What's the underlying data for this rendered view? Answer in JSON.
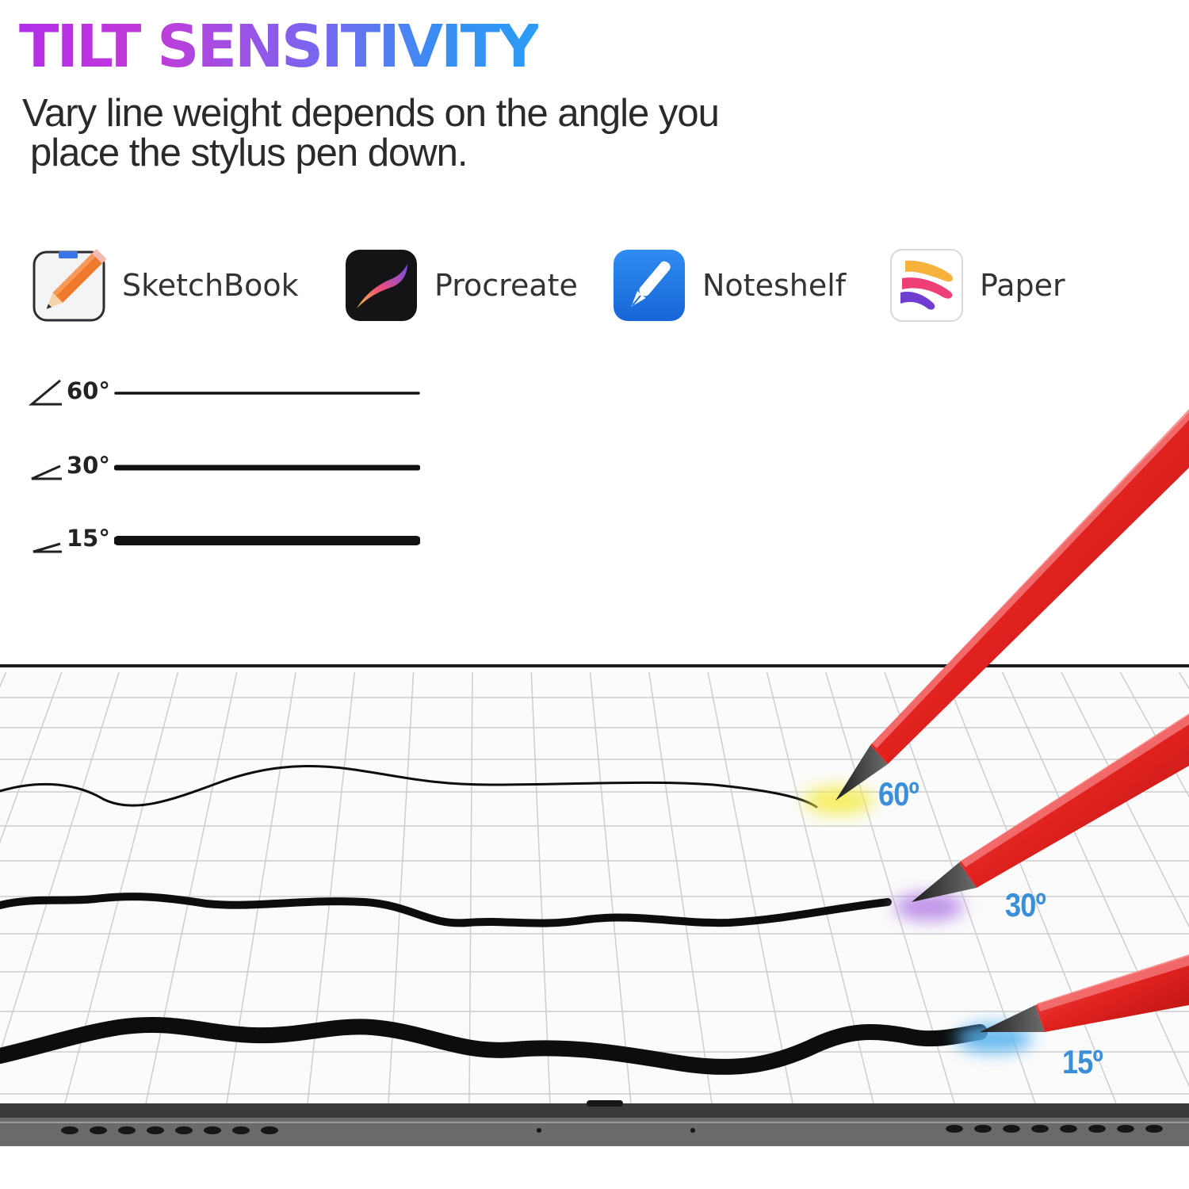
{
  "header": {
    "title": "TILT SENSITIVITY",
    "subtitle_line1": "Vary line weight depends on the angle you",
    "subtitle_line2": "place the stylus pen down."
  },
  "apps": [
    {
      "name": "SketchBook",
      "icon": "sketchbook-pencil-icon"
    },
    {
      "name": "Procreate",
      "icon": "procreate-brush-icon"
    },
    {
      "name": "Noteshelf",
      "icon": "noteshelf-pen-icon"
    },
    {
      "name": "Paper",
      "icon": "paper-ribbon-icon"
    }
  ],
  "legend": [
    {
      "angle": "60°",
      "weight": "thin"
    },
    {
      "angle": "30°",
      "weight": "medium"
    },
    {
      "angle": "15°",
      "weight": "thick"
    }
  ],
  "tablet": {
    "stroke_labels": [
      "60º",
      "30º",
      "15º"
    ],
    "glow_colors": [
      "#f4ec4a",
      "#b583e6",
      "#59b2ee"
    ],
    "pen_color": "#e1221f"
  }
}
